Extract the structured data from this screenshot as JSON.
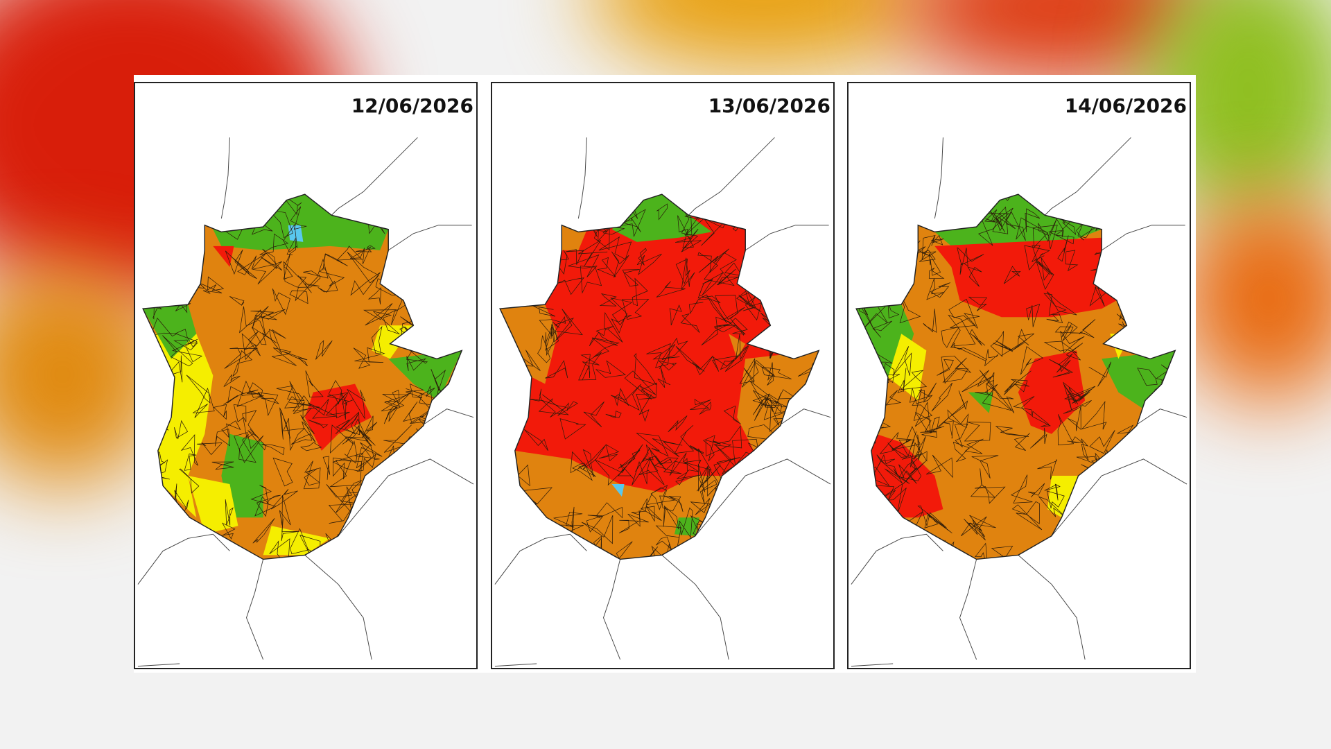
{
  "panels": [
    {
      "date": "12/06/2026"
    },
    {
      "date": "13/06/2026"
    },
    {
      "date": "14/06/2026"
    }
  ]
}
